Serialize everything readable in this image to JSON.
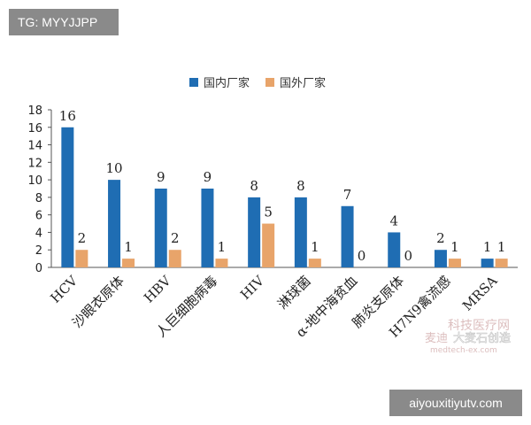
{
  "badges": {
    "top_left": "TG: MYYJJPP",
    "bottom_right": "aiyouxitiyutv.com"
  },
  "watermark": {
    "line1": "科技医疗网",
    "line2": "麦迪",
    "line3": "medtech-ex.com",
    "seal": "大麦石创造"
  },
  "chart_data": {
    "type": "bar",
    "categories": [
      "HCV",
      "沙眼衣原体",
      "HBV",
      "人巨细胞病毒",
      "HIV",
      "淋球菌",
      "α-地中海贫血",
      "肺炎支原体",
      "H7N9禽流感",
      "MRSA"
    ],
    "series": [
      {
        "name": "国内厂家",
        "color": "#1f6db3",
        "values": [
          16,
          10,
          9,
          9,
          8,
          8,
          7,
          4,
          2,
          1
        ]
      },
      {
        "name": "国外厂家",
        "color": "#e8a46a",
        "values": [
          2,
          1,
          2,
          1,
          5,
          1,
          0,
          0,
          1,
          1
        ]
      }
    ],
    "y_ticks": [
      "0",
      "2",
      "4",
      "6",
      "8",
      "10",
      "12",
      "14",
      "16",
      "18"
    ],
    "ylim": [
      0,
      18
    ],
    "title": "",
    "xlabel": "",
    "ylabel": "",
    "grid": false,
    "legend_position": "top-center"
  }
}
